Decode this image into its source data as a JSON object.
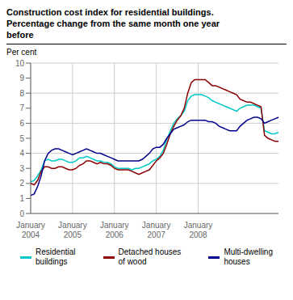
{
  "chart_data": {
    "type": "line",
    "title": "Construction cost index for residential buildings.\nPercentage change from the same month one year\nbefore",
    "ylabel": "Per cent",
    "categories": [
      "January\n2004",
      null,
      null,
      null,
      null,
      null,
      null,
      null,
      null,
      null,
      null,
      null,
      "January\n2005",
      null,
      null,
      null,
      null,
      null,
      null,
      null,
      null,
      null,
      null,
      null,
      "January\n2006",
      null,
      null,
      null,
      null,
      null,
      null,
      null,
      null,
      null,
      null,
      null,
      "January\n2007",
      null,
      null,
      null,
      null,
      null,
      null,
      null,
      null,
      null,
      null,
      null,
      "January\n2008",
      null,
      null,
      null,
      null,
      null,
      null,
      null,
      null,
      null,
      null,
      null,
      null,
      null,
      null,
      null,
      null,
      null,
      null,
      null,
      null,
      null,
      null,
      null
    ],
    "series": [
      {
        "name": "Residential\nbuildings",
        "color": "#00C8C8",
        "values": [
          2.1,
          2.2,
          2.5,
          2.9,
          3.5,
          3.6,
          3.5,
          3.5,
          3.6,
          3.6,
          3.5,
          3.4,
          3.4,
          3.5,
          3.7,
          3.7,
          3.8,
          3.7,
          3.6,
          3.5,
          3.5,
          3.4,
          3.4,
          3.3,
          3.1,
          3.0,
          3.0,
          3.0,
          3.0,
          2.9,
          3.0,
          3.0,
          3.1,
          3.2,
          3.3,
          3.5,
          3.6,
          3.8,
          4.2,
          4.9,
          5.5,
          6.0,
          6.3,
          6.5,
          6.8,
          7.5,
          7.8,
          7.9,
          7.9,
          7.9,
          7.8,
          7.7,
          7.5,
          7.4,
          7.3,
          7.2,
          7.1,
          7.0,
          6.9,
          6.8,
          7.0,
          7.1,
          7.2,
          7.2,
          7.2,
          7.1,
          7.0,
          5.5,
          5.4,
          5.3,
          5.3,
          5.4
        ]
      },
      {
        "name": "Detached houses\nof wood",
        "color": "#8B0000",
        "values": [
          2.0,
          1.9,
          2.2,
          2.8,
          3.1,
          3.1,
          3.0,
          3.0,
          3.1,
          3.1,
          3.0,
          2.9,
          2.9,
          3.0,
          3.2,
          3.3,
          3.5,
          3.5,
          3.4,
          3.3,
          3.4,
          3.3,
          3.3,
          3.2,
          3.0,
          2.9,
          2.9,
          2.9,
          2.9,
          2.8,
          2.7,
          2.6,
          2.7,
          2.8,
          2.9,
          3.2,
          3.5,
          3.7,
          4.0,
          4.6,
          5.3,
          5.8,
          6.2,
          6.5,
          7.0,
          8.0,
          8.7,
          8.9,
          8.9,
          8.9,
          8.9,
          8.7,
          8.5,
          8.5,
          8.4,
          8.3,
          8.2,
          8.1,
          8.0,
          7.9,
          7.6,
          7.5,
          7.4,
          7.4,
          7.3,
          7.2,
          7.1,
          5.2,
          5.0,
          4.9,
          4.8,
          4.8
        ]
      },
      {
        "name": "Multi-dwelling\nhouses",
        "color": "#00008B",
        "values": [
          1.2,
          1.3,
          1.8,
          2.5,
          3.5,
          4.0,
          4.2,
          4.3,
          4.3,
          4.2,
          4.1,
          4.0,
          3.9,
          4.0,
          4.1,
          4.2,
          4.3,
          4.2,
          4.1,
          4.0,
          4.0,
          3.9,
          3.8,
          3.7,
          3.6,
          3.5,
          3.5,
          3.5,
          3.5,
          3.5,
          3.5,
          3.5,
          3.6,
          3.8,
          4.0,
          4.3,
          4.4,
          4.4,
          4.6,
          5.0,
          5.3,
          5.6,
          5.7,
          5.8,
          5.9,
          6.1,
          6.2,
          6.2,
          6.2,
          6.2,
          6.2,
          6.1,
          6.1,
          6.0,
          5.8,
          5.7,
          5.6,
          5.5,
          5.5,
          5.5,
          5.8,
          6.0,
          6.2,
          6.3,
          6.4,
          6.4,
          6.3,
          6.0,
          6.1,
          6.2,
          6.3,
          6.4
        ]
      }
    ],
    "ylim": [
      0,
      10
    ],
    "yticks": [
      0,
      1,
      2,
      3,
      4,
      5,
      6,
      7,
      8,
      9,
      10
    ],
    "grid": true,
    "legend": "bottom"
  }
}
